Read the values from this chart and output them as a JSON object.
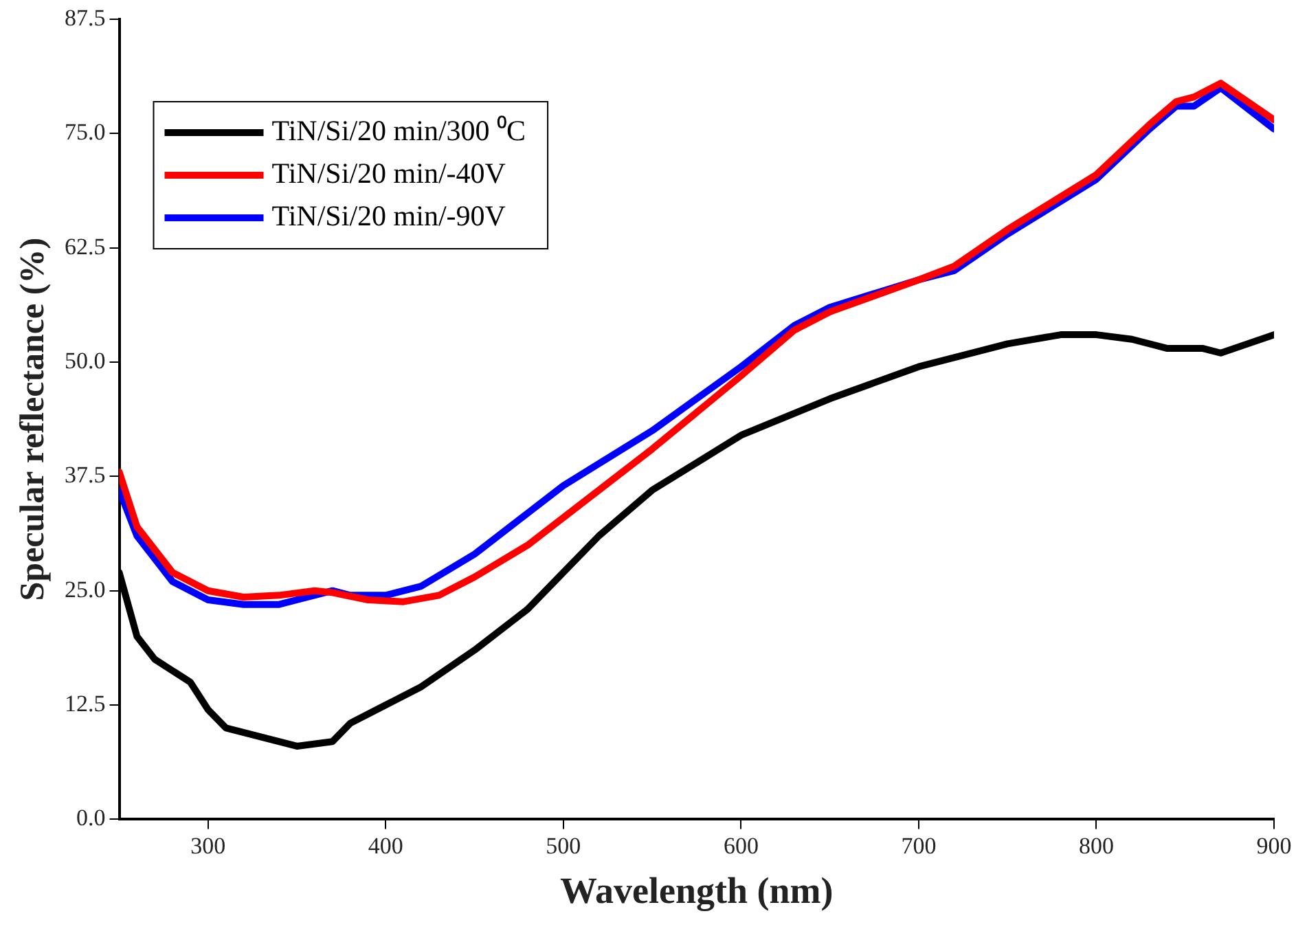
{
  "chart_data": {
    "type": "line",
    "xlabel": "Wavelength (nm)",
    "ylabel": "Specular reflectance (%)",
    "xlim": [
      250,
      900
    ],
    "xticks": [
      300,
      400,
      500,
      600,
      700,
      800,
      900
    ],
    "ylim": [
      0,
      87.5
    ],
    "yticks": [
      {
        "value": 0,
        "label": "0.0"
      },
      {
        "value": 12.5,
        "label": "12.5"
      },
      {
        "value": 25,
        "label": "25.0"
      },
      {
        "value": 37.5,
        "label": "37.5"
      },
      {
        "value": 50,
        "label": "50.0"
      },
      {
        "value": 62.5,
        "label": "62.5"
      },
      {
        "value": 75,
        "label": "75.0"
      },
      {
        "value": 87.5,
        "label": "87.5"
      }
    ],
    "grid": false,
    "legend": "top left",
    "marker": "none",
    "line_style": "solid",
    "series": [
      {
        "name": "TiN/Si/20 min/300 ⁰C",
        "color": "#000000",
        "x": [
          250,
          260,
          270,
          290,
          300,
          310,
          330,
          350,
          370,
          380,
          400,
          420,
          450,
          480,
          500,
          520,
          550,
          600,
          650,
          700,
          750,
          780,
          800,
          820,
          840,
          860,
          870,
          900
        ],
        "values": [
          27,
          20,
          17.5,
          15,
          12,
          10,
          9,
          8,
          8.5,
          10.5,
          12.5,
          14.5,
          18.5,
          23,
          27,
          31,
          36,
          42,
          46,
          49.5,
          52,
          53,
          53,
          52.5,
          51.5,
          51.5,
          51,
          53
        ]
      },
      {
        "name": "TiN/Si/20 min/-40V",
        "color": "#ff0000",
        "x": [
          250,
          260,
          280,
          300,
          320,
          340,
          360,
          370,
          390,
          410,
          430,
          450,
          480,
          500,
          550,
          600,
          630,
          650,
          700,
          720,
          750,
          800,
          830,
          845,
          855,
          870,
          900
        ],
        "values": [
          38,
          32,
          27,
          25,
          24.3,
          24.5,
          25,
          24.8,
          24,
          23.8,
          24.5,
          26.5,
          30,
          33,
          40.5,
          48.5,
          53.5,
          55.5,
          59,
          60.5,
          64.5,
          70.5,
          76,
          78.5,
          79,
          80.5,
          76.5
        ]
      },
      {
        "name": "TiN/Si/20 min/-90V",
        "color": "#0000ff",
        "x": [
          250,
          260,
          280,
          300,
          320,
          340,
          350,
          370,
          380,
          400,
          420,
          450,
          480,
          500,
          550,
          600,
          630,
          650,
          700,
          720,
          750,
          800,
          830,
          845,
          855,
          870,
          900
        ],
        "values": [
          36,
          31,
          26,
          24,
          23.5,
          23.5,
          24,
          25,
          24.5,
          24.5,
          25.5,
          29,
          33.5,
          36.5,
          42.5,
          49.5,
          54,
          56,
          59,
          60,
          64,
          70,
          75.5,
          78,
          78,
          80,
          75.5
        ]
      }
    ]
  }
}
